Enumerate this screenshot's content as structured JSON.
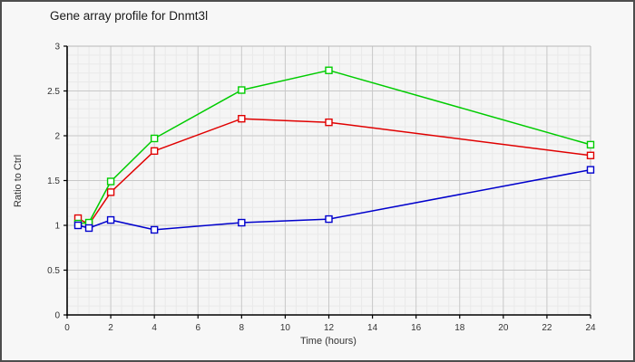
{
  "title": "Gene array profile for Dnmt3l",
  "chart_data": {
    "type": "line",
    "title": "Gene array profile for Dnmt3l",
    "xlabel": "Time (hours)",
    "ylabel": "Ratio to Ctrl",
    "x": [
      0.5,
      1,
      2,
      4,
      8,
      12,
      24
    ],
    "series": [
      {
        "name": "red-series",
        "color": "#e00000",
        "values": [
          1.08,
          1.01,
          1.37,
          1.83,
          2.19,
          2.15,
          1.78
        ]
      },
      {
        "name": "green-series",
        "color": "#00cc00",
        "values": [
          1.02,
          1.03,
          1.49,
          1.97,
          2.51,
          2.73,
          1.9
        ]
      },
      {
        "name": "blue-series",
        "color": "#0000cc",
        "values": [
          1.0,
          0.97,
          1.06,
          0.95,
          1.03,
          1.07,
          1.62
        ]
      }
    ],
    "xlim": [
      0,
      24
    ],
    "ylim": [
      0,
      3
    ],
    "x_ticks": [
      0,
      2,
      4,
      6,
      8,
      10,
      12,
      14,
      16,
      18,
      20,
      22,
      24
    ],
    "x_tick_labels": [
      "0",
      "2",
      "4",
      "6",
      "8",
      "10",
      "12",
      "14",
      "16",
      "18",
      "20",
      "22",
      "24"
    ],
    "y_ticks": [
      0,
      0.5,
      1,
      1.5,
      2,
      2.5,
      3
    ],
    "y_tick_labels": [
      "0",
      "0.5",
      "1",
      "1.5",
      "2",
      "2.5",
      "3"
    ],
    "x_minor_step": 0.5,
    "y_minor_step": 0.1,
    "grid": true,
    "legend": "none",
    "marker": "open-square"
  },
  "colors": {
    "background": "#f7f7f7",
    "panel": "#f5f5f5",
    "outer_border": "#4d4d4d",
    "major_grid": "#c8c8c8",
    "minor_grid": "#e9e9e9",
    "plot_border": "#b8b8b8",
    "axis": "#000000",
    "tick_label": "#333333",
    "title_text": "#1a1a1a"
  }
}
